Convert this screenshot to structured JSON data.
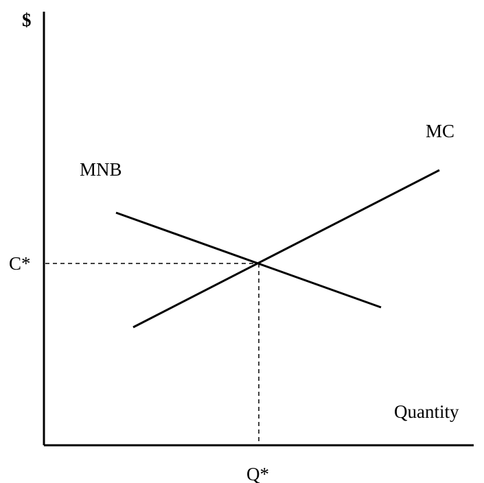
{
  "diagram": {
    "y_axis_label": "$",
    "x_axis_label": "Quantity",
    "price_marker_label": "C*",
    "quantity_marker_label": "Q*",
    "curves": {
      "mc_label": "MC",
      "mnb_label": "MNB"
    },
    "colors": {
      "line": "#000000",
      "background": "#ffffff"
    }
  }
}
